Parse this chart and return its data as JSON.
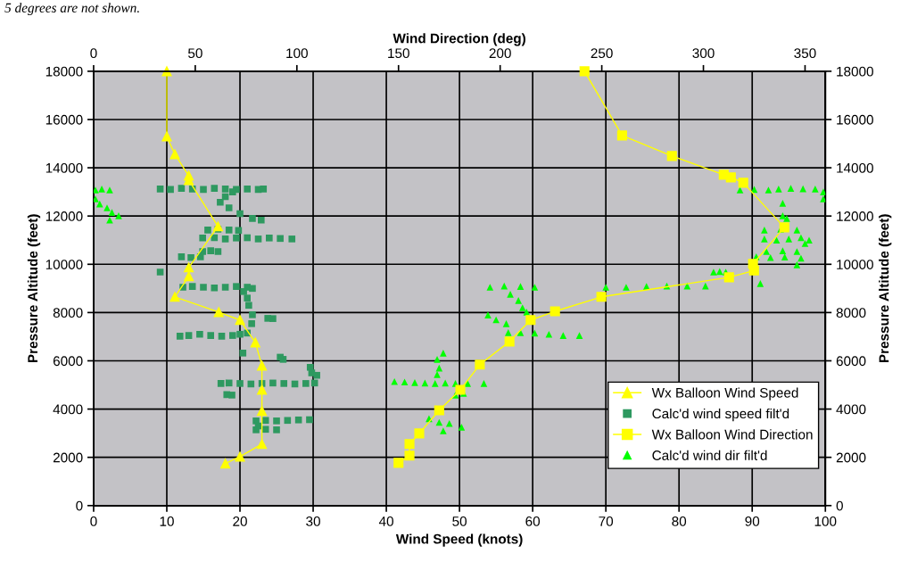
{
  "chart_data": {
    "type": "scatter",
    "xlabel": "Wind Speed (knots)",
    "x2label": "Wind Direction (deg)",
    "ylabel": "Pressure Altitude (feet)",
    "y2label": "Pressure Altitude (feet)",
    "annotations": [
      "5 degrees are not shown."
    ],
    "xlim": [
      0,
      100
    ],
    "xticks": [
      0,
      10,
      20,
      30,
      40,
      50,
      60,
      70,
      80,
      90,
      100
    ],
    "x2lim": [
      0,
      360
    ],
    "x2ticks": [
      0,
      50,
      100,
      150,
      200,
      250,
      300,
      350
    ],
    "ylim": [
      0,
      18000
    ],
    "yticks": [
      0,
      2000,
      4000,
      6000,
      8000,
      10000,
      12000,
      14000,
      16000,
      18000
    ],
    "y2lim": [
      0,
      18000
    ],
    "y2ticks": [
      0,
      2000,
      4000,
      6000,
      8000,
      10000,
      12000,
      14000,
      16000,
      18000
    ],
    "grid": true,
    "legend": "bottom right",
    "series": [
      {
        "name": "Wx Balloon Wind Speed",
        "type": "line",
        "marker": "triangle",
        "color": "#ffff00",
        "x": [
          10,
          10,
          11.1,
          13,
          13,
          17,
          13,
          13,
          11.1,
          17.1,
          20,
          22.1,
          23,
          23,
          23,
          23,
          20,
          18
        ],
        "values": [
          18000,
          15300,
          14560,
          13670,
          13490,
          11570,
          9870,
          9500,
          8650,
          8020,
          7690,
          6760,
          5800,
          4800,
          3920,
          2550,
          2030,
          1740
        ]
      },
      {
        "name": "Calc'd wind speed filt'd",
        "type": "scatter",
        "marker": "square",
        "color": "#2e9960",
        "x": [
          9.1,
          10.5,
          12,
          13.5,
          15,
          16.5,
          18,
          19.5,
          21,
          22.5,
          23.2,
          18,
          19,
          17.3,
          18.5,
          20,
          21.7,
          22.9,
          15.6,
          17,
          18.5,
          19.8,
          14.9,
          16.5,
          18,
          19.5,
          21,
          22.5,
          24,
          25.5,
          27.1,
          14.9,
          16,
          17,
          12,
          13.3,
          14.6,
          9.1,
          12.2,
          13.5,
          15,
          16.5,
          18,
          19.5,
          21,
          21.7,
          20.5,
          21,
          21.2,
          21.7,
          23.8,
          24.5,
          21.6,
          11.8,
          13,
          14.5,
          16,
          17.5,
          19,
          20,
          21,
          20.4,
          25.9,
          25.5,
          17.4,
          18.5,
          20,
          21.5,
          23,
          24.5,
          26,
          27.5,
          29,
          30.2,
          29.6,
          29.8,
          30.5,
          18.9,
          18.2,
          22.2,
          23.5,
          25,
          26.5,
          28,
          29.5,
          22.2,
          23.5,
          25,
          22.5
        ],
        "values": [
          13120,
          13100,
          13150,
          13120,
          13100,
          13150,
          13120,
          13100,
          13120,
          13100,
          13120,
          12800,
          13000,
          12570,
          12340,
          12100,
          11900,
          11830,
          11420,
          11450,
          11420,
          11400,
          11090,
          11100,
          11050,
          11090,
          11100,
          11050,
          11090,
          11070,
          11050,
          10530,
          10560,
          10530,
          10310,
          10280,
          10310,
          9680,
          9050,
          9080,
          9050,
          9020,
          9050,
          9080,
          9050,
          9000,
          8870,
          8600,
          8300,
          7910,
          7760,
          7750,
          7540,
          7020,
          7050,
          7100,
          7050,
          7020,
          7050,
          7100,
          7150,
          6320,
          6060,
          6150,
          5060,
          5080,
          5060,
          5040,
          5060,
          5080,
          5060,
          5040,
          5060,
          5080,
          5730,
          5500,
          5400,
          4580,
          4600,
          3510,
          3530,
          3510,
          3530,
          3550,
          3560,
          3140,
          3160,
          3140,
          3300
        ]
      },
      {
        "name": "Wx Balloon Wind Direction",
        "type": "line",
        "axis": "x2",
        "marker": "square",
        "color": "#ffff00",
        "x": [
          241.5,
          260,
          284.5,
          310,
          313.5,
          319.6,
          339.8,
          324.4,
          324.9,
          312.6,
          249.8,
          227,
          215,
          204.6,
          190,
          180.4,
          170,
          160.2,
          155.4,
          155.4,
          150
        ],
        "values": [
          18000,
          15340,
          14490,
          13710,
          13600,
          13380,
          11530,
          10020,
          9740,
          9460,
          8650,
          8050,
          7690,
          6800,
          5840,
          4800,
          3950,
          2990,
          2550,
          2070,
          1770
        ]
      },
      {
        "name": "Calc'd wind dir filt'd",
        "type": "scatter",
        "axis": "x2",
        "marker": "triangle",
        "color": "#00ff00",
        "x": [
          0.9,
          4,
          7.9,
          0.9,
          3,
          6.6,
          9,
          12.3,
          7.9,
          318,
          325,
          332,
          337,
          343,
          349,
          355,
          359,
          359,
          339,
          339,
          341,
          330,
          338,
          346,
          330,
          336,
          342,
          348,
          352,
          350,
          331,
          339,
          346,
          326,
          333,
          340,
          348,
          346,
          305,
          308,
          311,
          328,
          252,
          262,
          272,
          282,
          292,
          301,
          195,
          202,
          210,
          217,
          205,
          209,
          211,
          213,
          194,
          198,
          203,
          204,
          210,
          217,
          224,
          231,
          239,
          169,
          170,
          169,
          172,
          148,
          153,
          158,
          163,
          168,
          173,
          178,
          184,
          192,
          178,
          182,
          165,
          170,
          175,
          181,
          172
        ],
        "values": [
          13080,
          13120,
          13080,
          12710,
          12500,
          12340,
          12150,
          12010,
          11830,
          13080,
          13100,
          13080,
          13120,
          13150,
          13130,
          13120,
          13000,
          12710,
          12530,
          12010,
          11900,
          11420,
          11450,
          11420,
          11050,
          11000,
          11050,
          11100,
          11000,
          10860,
          10530,
          10560,
          10530,
          10310,
          10280,
          10300,
          10250,
          9980,
          9680,
          9700,
          9680,
          9200,
          9050,
          9050,
          9080,
          9100,
          9100,
          9100,
          9050,
          9100,
          9080,
          9050,
          8760,
          8500,
          8200,
          8020,
          7900,
          7700,
          7540,
          7170,
          7170,
          7150,
          7100,
          7050,
          7050,
          6060,
          5700,
          5430,
          6320,
          5140,
          5120,
          5100,
          5080,
          5060,
          5080,
          5060,
          5060,
          5060,
          4580,
          4650,
          3600,
          3450,
          3400,
          3250,
          3100
        ]
      }
    ]
  }
}
